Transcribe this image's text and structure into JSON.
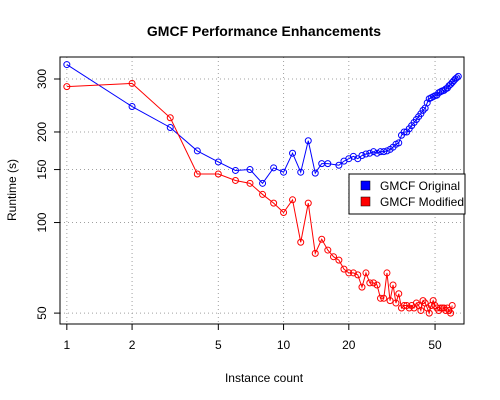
{
  "chart_data": {
    "type": "line",
    "title": "GMCF Performance Enhancements",
    "xlabel": "Instance count",
    "ylabel": "Runtime (s)",
    "x_scale": "log",
    "y_scale": "log",
    "xlim": [
      0.93,
      68
    ],
    "ylim": [
      46,
      355
    ],
    "x_ticks": [
      1,
      2,
      5,
      10,
      20,
      50
    ],
    "y_ticks": [
      50,
      100,
      150,
      200,
      300
    ],
    "grid": true,
    "legend_position": "right",
    "series": [
      {
        "name": "GMCF Original",
        "color": "#0000ff",
        "x": [
          1,
          2,
          3,
          4,
          5,
          6,
          7,
          8,
          9,
          10,
          11,
          12,
          13,
          14,
          15,
          16,
          18,
          19,
          20,
          21,
          22,
          23,
          24,
          25,
          26,
          27,
          28,
          29,
          30,
          31,
          32,
          33,
          34,
          35,
          36,
          37,
          38,
          39,
          40,
          41,
          42,
          43,
          44,
          45,
          46,
          47,
          48,
          49,
          50,
          51,
          52,
          53,
          54,
          55,
          56,
          57,
          58,
          59,
          60,
          61,
          62,
          63,
          64
        ],
        "y": [
          335,
          243,
          207,
          173,
          159,
          149,
          150,
          135,
          152,
          147,
          170,
          147,
          187,
          146,
          157,
          157,
          155,
          160,
          163,
          166,
          163,
          167,
          169,
          170,
          172,
          170,
          172,
          172,
          173,
          175,
          178,
          182,
          184,
          195,
          200,
          200,
          205,
          210,
          215,
          220,
          225,
          230,
          236,
          240,
          250,
          258,
          260,
          262,
          264,
          265,
          270,
          272,
          274,
          275,
          278,
          280,
          285,
          288,
          292,
          296,
          300,
          303,
          306
        ]
      },
      {
        "name": "GMCF Modified",
        "color": "#ff0000",
        "x": [
          1,
          2,
          3,
          4,
          5,
          6,
          7,
          8,
          9,
          10,
          11,
          12,
          13,
          14,
          15,
          16,
          17,
          18,
          19,
          20,
          21,
          22,
          23,
          24,
          25,
          26,
          27,
          28,
          29,
          30,
          31,
          32,
          33,
          34,
          35,
          36,
          37,
          38,
          39,
          40,
          41,
          42,
          43,
          44,
          45,
          46,
          47,
          48,
          49,
          50,
          51,
          52,
          53,
          54,
          55,
          56,
          57,
          58,
          59,
          60
        ],
        "y": [
          283,
          290,
          223,
          145,
          145,
          138,
          135,
          124,
          116,
          108,
          119,
          86,
          116,
          79,
          88,
          81,
          77,
          75,
          70,
          68,
          68,
          67,
          61,
          68,
          63,
          63,
          62,
          56,
          56,
          68,
          55,
          62,
          54,
          58,
          52,
          53,
          53,
          52,
          53,
          52,
          54,
          53,
          51,
          55,
          54,
          52,
          50,
          53,
          55,
          53,
          52,
          51,
          52,
          52,
          52,
          51,
          52,
          51,
          50,
          53
        ]
      }
    ]
  }
}
